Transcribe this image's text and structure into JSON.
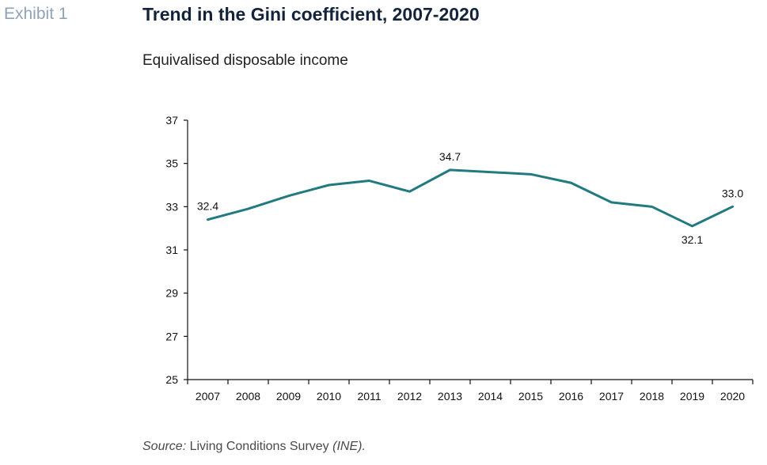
{
  "header": {
    "exhibit": "Exhibit 1",
    "title": "Trend in the Gini coefficient, 2007-2020",
    "subtitle": "Equivalised disposable income"
  },
  "source": {
    "prefix": "Source:",
    "text": " Living Conditions Survey ",
    "org": "(INE)."
  },
  "colors": {
    "line": "#217a7f",
    "axis": "#111111"
  },
  "chart_data": {
    "type": "line",
    "title": "Trend in the Gini coefficient, 2007-2020",
    "subtitle": "Equivalised disposable income",
    "categories": [
      "2007",
      "2008",
      "2009",
      "2010",
      "2011",
      "2012",
      "2013",
      "2014",
      "2015",
      "2016",
      "2017",
      "2018",
      "2019",
      "2020"
    ],
    "series": [
      {
        "values": [
          32.4,
          32.9,
          33.5,
          34.0,
          34.2,
          33.7,
          34.7,
          34.6,
          34.5,
          34.1,
          33.2,
          33.0,
          32.1,
          33.0
        ]
      }
    ],
    "ylim": [
      25,
      37
    ],
    "yticks": [
      "25",
      "27",
      "29",
      "31",
      "33",
      "35",
      "37"
    ],
    "data_labels": [
      {
        "index": 0,
        "text": "32.4",
        "placement": "above"
      },
      {
        "index": 6,
        "text": "34.7",
        "placement": "above"
      },
      {
        "index": 12,
        "text": "32.1",
        "placement": "below"
      },
      {
        "index": 13,
        "text": "33.0",
        "placement": "above"
      }
    ],
    "xlabel": "",
    "ylabel": "",
    "grid": false,
    "legend": "none"
  }
}
